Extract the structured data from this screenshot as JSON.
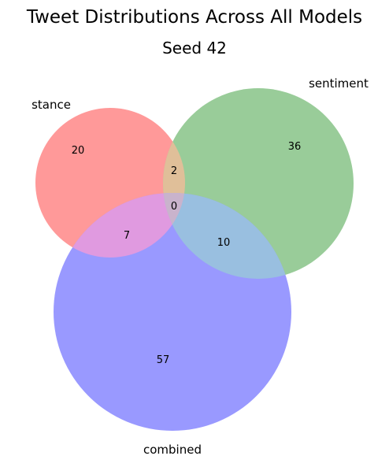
{
  "title": "Tweet Distributions Across All Models",
  "subtitle": "Seed 42",
  "sets": {
    "stance": {
      "label": "stance",
      "color": "#ff9999"
    },
    "sentiment": {
      "label": "sentiment",
      "color": "#99cc99"
    },
    "combined": {
      "label": "combined",
      "color": "#9999ff"
    }
  },
  "regions": {
    "stance_only": "20",
    "sentiment_only": "36",
    "combined_only": "57",
    "stance_sentiment": "2",
    "all_three": "0",
    "stance_combined": "7",
    "sentiment_combined": "10"
  },
  "overlap_colors": {
    "stance_sentiment": "#e0bf99",
    "stance_combined": "#e09ae0",
    "sentiment_combined": "#99bfe0",
    "all_three": "#c9b3cc"
  }
}
